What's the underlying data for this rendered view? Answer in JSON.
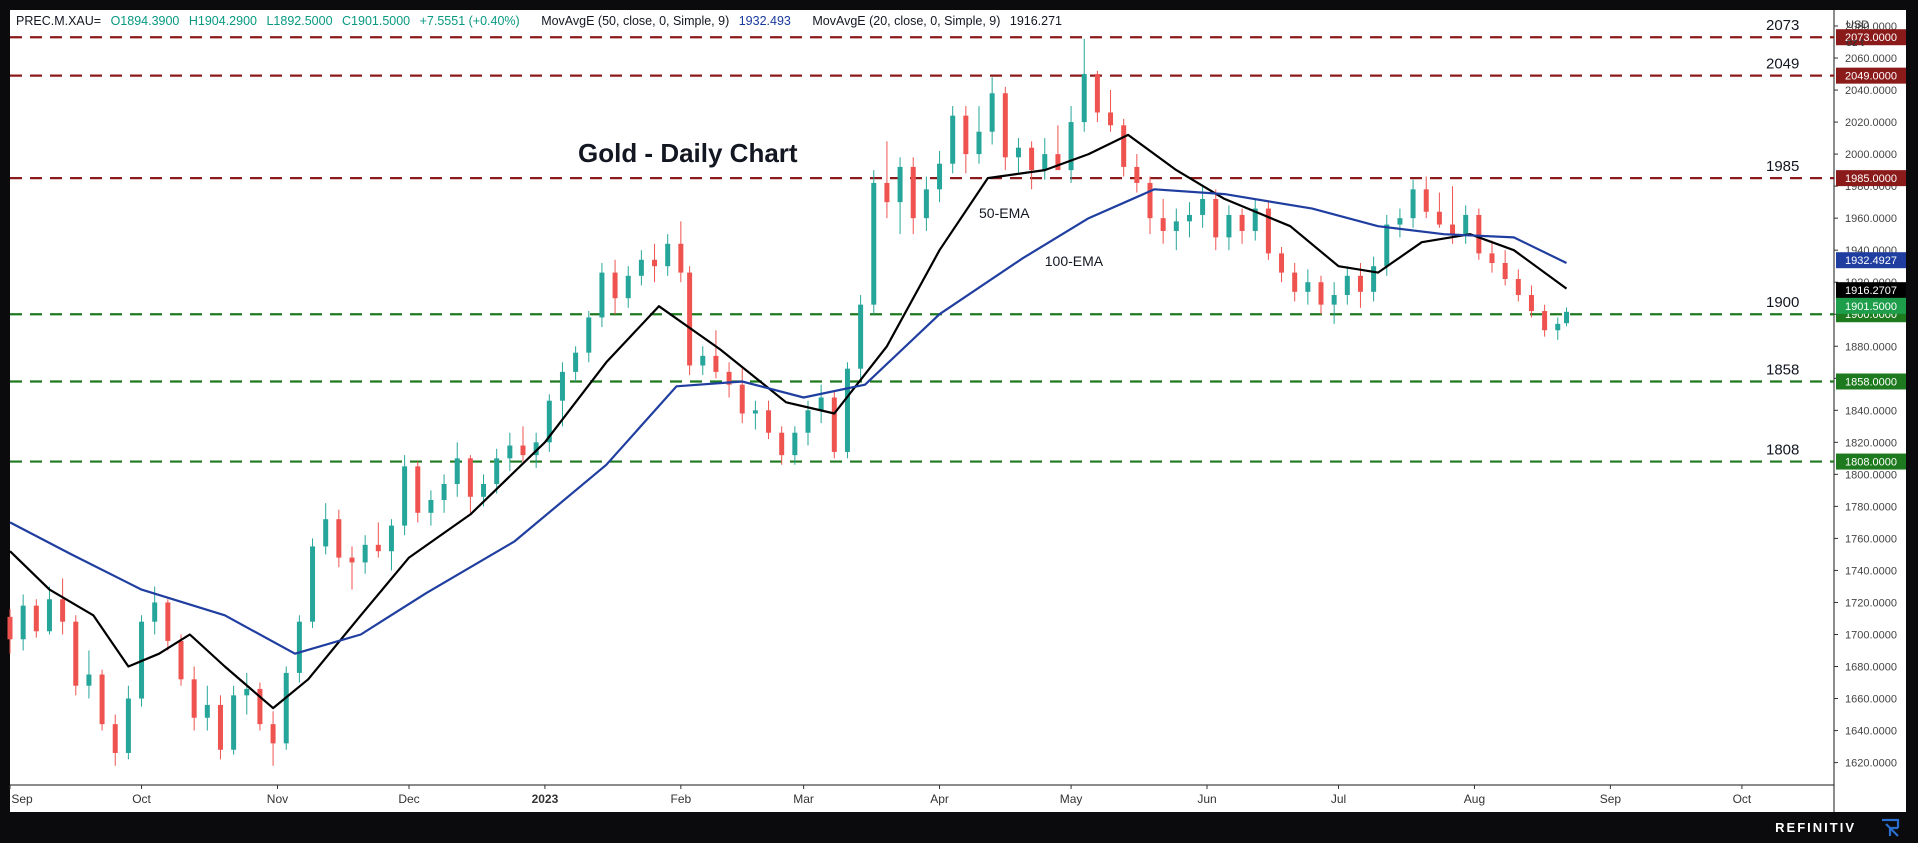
{
  "legend": {
    "symbol": "PREC.M.XAU=",
    "open": "O1894.3900",
    "high": "H1904.2900",
    "low": "L1892.5000",
    "close": "C1901.5000",
    "change": "+7.5551 (+0.40%)",
    "ma50_label": "MovAvgE (50, close, 0, Simple, 9)",
    "ma50_value": "1932.493",
    "ma20_label": "MovAvgE (20, close, 0, Simple, 9)",
    "ma20_value": "1916.271"
  },
  "brand": "REFINITIV",
  "colors": {
    "up": "#26a69a",
    "down": "#ef5350",
    "ema_short": "#000000",
    "ema_long": "#1f3ea0",
    "resistance": "#8b1a1a",
    "support": "#1e7a1e",
    "price_tag": "#1e7a3a"
  },
  "chart_data": {
    "type": "candlestick",
    "title": "Gold - Daily Chart",
    "y_axis": {
      "unit_line1": "USD",
      "unit_line2": "oz t",
      "range": [
        1606,
        2090
      ],
      "ticks": [
        1620,
        1640,
        1660,
        1680,
        1700,
        1720,
        1740,
        1760,
        1780,
        1800,
        1820,
        1840,
        1860,
        1880,
        1900,
        1920,
        1940,
        1960,
        1980,
        2000,
        2020,
        2040,
        2060,
        2080
      ],
      "tick_labels": [
        "1620.0000",
        "1640.0000",
        "1660.0000",
        "1680.0000",
        "1700.0000",
        "1720.0000",
        "1740.0000",
        "1760.0000",
        "1780.0000",
        "1800.0000",
        "1820.0000",
        "1840.0000",
        "1860.0000",
        "1880.0000",
        "1900.0000",
        "1920.0000",
        "1940.0000",
        "1960.0000",
        "1980.0000",
        "2000.0000",
        "2020.0000",
        "2040.0000",
        "2060.0000",
        "2080.0000"
      ]
    },
    "x_axis": {
      "labels": [
        "Sep",
        "Oct",
        "Nov",
        "Dec",
        "2023",
        "Feb",
        "Mar",
        "Apr",
        "May",
        "Jun",
        "Jul",
        "Aug",
        "Sep",
        "Oct"
      ],
      "label_dates": [
        "2022-09-01",
        "2022-10-01",
        "2022-11-01",
        "2022-12-01",
        "2023-01-01",
        "2023-02-01",
        "2023-03-01",
        "2023-04-01",
        "2023-05-01",
        "2023-06-01",
        "2023-07-01",
        "2023-08-01",
        "2023-09-01",
        "2023-10-01"
      ],
      "range": [
        "2022-09-01",
        "2023-10-22"
      ]
    },
    "horizontal_levels": [
      {
        "value": 2073,
        "label": "2073",
        "tag": "2073.0000",
        "kind": "resistance"
      },
      {
        "value": 2049,
        "label": "2049",
        "tag": "2049.0000",
        "kind": "resistance"
      },
      {
        "value": 1985,
        "label": "1985",
        "tag": "1985.0000",
        "kind": "resistance"
      },
      {
        "value": 1900,
        "label": "1900",
        "tag": "1900.0000",
        "kind": "support"
      },
      {
        "value": 1858,
        "label": "1858",
        "tag": "1858.0000",
        "kind": "support"
      },
      {
        "value": 1808,
        "label": "1808",
        "tag": "1808.0000",
        "kind": "support"
      }
    ],
    "price_tags": [
      {
        "value": 1932.4927,
        "text": "1932.4927",
        "color": "#1f3ea0"
      },
      {
        "value": 1916.2707,
        "text": "1916.2707",
        "color": "#000000"
      },
      {
        "value": 1901.5,
        "text": "1901.5000",
        "color": "#1e9e4a"
      }
    ],
    "annotations": [
      {
        "text": "50-EMA",
        "date": "2023-04-10",
        "value": 1960
      },
      {
        "text": "100-EMA",
        "date": "2023-04-25",
        "value": 1930
      }
    ],
    "series": [
      {
        "name": "MovAvgE (20, close, 0, Simple, 9)",
        "color": "#000000",
        "points": [
          [
            "2022-09-01",
            1752
          ],
          [
            "2022-09-10",
            1728
          ],
          [
            "2022-09-20",
            1712
          ],
          [
            "2022-09-28",
            1680
          ],
          [
            "2022-10-05",
            1688
          ],
          [
            "2022-10-12",
            1700
          ],
          [
            "2022-10-20",
            1680
          ],
          [
            "2022-10-31",
            1654
          ],
          [
            "2022-11-08",
            1672
          ],
          [
            "2022-11-20",
            1712
          ],
          [
            "2022-12-01",
            1748
          ],
          [
            "2022-12-15",
            1775
          ],
          [
            "2023-01-01",
            1820
          ],
          [
            "2023-01-15",
            1870
          ],
          [
            "2023-01-27",
            1905
          ],
          [
            "2023-02-10",
            1878
          ],
          [
            "2023-02-25",
            1845
          ],
          [
            "2023-03-08",
            1838
          ],
          [
            "2023-03-20",
            1880
          ],
          [
            "2023-04-01",
            1940
          ],
          [
            "2023-04-12",
            1985
          ],
          [
            "2023-04-25",
            1990
          ],
          [
            "2023-05-05",
            2000
          ],
          [
            "2023-05-14",
            2012
          ],
          [
            "2023-05-25",
            1990
          ],
          [
            "2023-06-05",
            1972
          ],
          [
            "2023-06-20",
            1955
          ],
          [
            "2023-07-01",
            1930
          ],
          [
            "2023-07-10",
            1926
          ],
          [
            "2023-07-20",
            1945
          ],
          [
            "2023-07-31",
            1950
          ],
          [
            "2023-08-10",
            1940
          ],
          [
            "2023-08-22",
            1916
          ]
        ]
      },
      {
        "name": "MovAvgE (50, close, 0, Simple, 9)",
        "color": "#1f3ea0",
        "points": [
          [
            "2022-09-01",
            1770
          ],
          [
            "2022-09-15",
            1750
          ],
          [
            "2022-10-01",
            1728
          ],
          [
            "2022-10-20",
            1712
          ],
          [
            "2022-11-05",
            1688
          ],
          [
            "2022-11-20",
            1700
          ],
          [
            "2022-12-05",
            1726
          ],
          [
            "2022-12-25",
            1758
          ],
          [
            "2023-01-15",
            1806
          ],
          [
            "2023-01-31",
            1855
          ],
          [
            "2023-02-15",
            1858
          ],
          [
            "2023-03-01",
            1848
          ],
          [
            "2023-03-15",
            1856
          ],
          [
            "2023-04-01",
            1900
          ],
          [
            "2023-04-20",
            1935
          ],
          [
            "2023-05-05",
            1960
          ],
          [
            "2023-05-20",
            1978
          ],
          [
            "2023-06-05",
            1975
          ],
          [
            "2023-06-25",
            1966
          ],
          [
            "2023-07-10",
            1955
          ],
          [
            "2023-07-25",
            1950
          ],
          [
            "2023-08-10",
            1948
          ],
          [
            "2023-08-22",
            1932
          ]
        ]
      }
    ],
    "candles_note": "daily OHLC, 2022-09-01 to 2023-08-22; last candle O1894.39 H1904.29 L1892.50 C1901.50",
    "candles": [
      [
        "2022-09-01",
        1711,
        1716,
        1688,
        1697
      ],
      [
        "2022-09-04",
        1697,
        1725,
        1690,
        1718
      ],
      [
        "2022-09-07",
        1718,
        1722,
        1698,
        1702
      ],
      [
        "2022-09-10",
        1702,
        1730,
        1700,
        1722
      ],
      [
        "2022-09-13",
        1722,
        1735,
        1700,
        1708
      ],
      [
        "2022-09-16",
        1708,
        1712,
        1662,
        1668
      ],
      [
        "2022-09-19",
        1668,
        1690,
        1660,
        1675
      ],
      [
        "2022-09-22",
        1675,
        1678,
        1640,
        1644
      ],
      [
        "2022-09-25",
        1644,
        1650,
        1618,
        1626
      ],
      [
        "2022-09-28",
        1626,
        1668,
        1622,
        1660
      ],
      [
        "2022-10-01",
        1660,
        1712,
        1655,
        1708
      ],
      [
        "2022-10-04",
        1708,
        1730,
        1700,
        1720
      ],
      [
        "2022-10-07",
        1720,
        1722,
        1690,
        1696
      ],
      [
        "2022-10-10",
        1696,
        1700,
        1668,
        1672
      ],
      [
        "2022-10-13",
        1672,
        1680,
        1640,
        1648
      ],
      [
        "2022-10-16",
        1648,
        1668,
        1640,
        1656
      ],
      [
        "2022-10-19",
        1656,
        1662,
        1622,
        1628
      ],
      [
        "2022-10-22",
        1628,
        1668,
        1625,
        1662
      ],
      [
        "2022-10-25",
        1662,
        1676,
        1650,
        1666
      ],
      [
        "2022-10-28",
        1666,
        1670,
        1640,
        1644
      ],
      [
        "2022-10-31",
        1644,
        1652,
        1618,
        1632
      ],
      [
        "2022-11-03",
        1632,
        1680,
        1628,
        1676
      ],
      [
        "2022-11-06",
        1676,
        1712,
        1670,
        1708
      ],
      [
        "2022-11-09",
        1708,
        1760,
        1704,
        1755
      ],
      [
        "2022-11-12",
        1755,
        1782,
        1750,
        1772
      ],
      [
        "2022-11-15",
        1772,
        1778,
        1742,
        1748
      ],
      [
        "2022-11-18",
        1748,
        1755,
        1728,
        1745
      ],
      [
        "2022-11-21",
        1745,
        1762,
        1738,
        1756
      ],
      [
        "2022-11-24",
        1756,
        1770,
        1748,
        1752
      ],
      [
        "2022-11-27",
        1752,
        1772,
        1740,
        1768
      ],
      [
        "2022-11-30",
        1768,
        1812,
        1762,
        1805
      ],
      [
        "2022-12-03",
        1805,
        1808,
        1770,
        1776
      ],
      [
        "2022-12-06",
        1776,
        1790,
        1768,
        1784
      ],
      [
        "2022-12-09",
        1784,
        1800,
        1776,
        1794
      ],
      [
        "2022-12-12",
        1794,
        1820,
        1786,
        1810
      ],
      [
        "2022-12-15",
        1810,
        1812,
        1776,
        1786
      ],
      [
        "2022-12-18",
        1786,
        1800,
        1780,
        1794
      ],
      [
        "2022-12-21",
        1794,
        1816,
        1788,
        1810
      ],
      [
        "2022-12-24",
        1810,
        1826,
        1802,
        1818
      ],
      [
        "2022-12-27",
        1818,
        1830,
        1808,
        1812
      ],
      [
        "2022-12-30",
        1812,
        1826,
        1804,
        1820
      ],
      [
        "2023-01-02",
        1820,
        1850,
        1814,
        1846
      ],
      [
        "2023-01-05",
        1846,
        1870,
        1830,
        1864
      ],
      [
        "2023-01-08",
        1864,
        1880,
        1858,
        1876
      ],
      [
        "2023-01-11",
        1876,
        1902,
        1870,
        1898
      ],
      [
        "2023-01-14",
        1898,
        1932,
        1892,
        1926
      ],
      [
        "2023-01-17",
        1926,
        1934,
        1900,
        1910
      ],
      [
        "2023-01-20",
        1910,
        1930,
        1904,
        1924
      ],
      [
        "2023-01-23",
        1924,
        1940,
        1918,
        1934
      ],
      [
        "2023-01-26",
        1934,
        1944,
        1920,
        1930
      ],
      [
        "2023-01-29",
        1930,
        1950,
        1924,
        1944
      ],
      [
        "2023-02-01",
        1944,
        1958,
        1920,
        1926
      ],
      [
        "2023-02-03",
        1926,
        1930,
        1862,
        1868
      ],
      [
        "2023-02-06",
        1868,
        1880,
        1862,
        1874
      ],
      [
        "2023-02-09",
        1874,
        1890,
        1860,
        1864
      ],
      [
        "2023-02-12",
        1864,
        1870,
        1848,
        1856
      ],
      [
        "2023-02-15",
        1856,
        1866,
        1832,
        1838
      ],
      [
        "2023-02-18",
        1838,
        1846,
        1828,
        1840
      ],
      [
        "2023-02-21",
        1840,
        1846,
        1822,
        1826
      ],
      [
        "2023-02-24",
        1826,
        1830,
        1806,
        1812
      ],
      [
        "2023-02-27",
        1812,
        1830,
        1806,
        1826
      ],
      [
        "2023-03-02",
        1826,
        1846,
        1818,
        1840
      ],
      [
        "2023-03-05",
        1840,
        1856,
        1832,
        1848
      ],
      [
        "2023-03-08",
        1848,
        1852,
        1810,
        1814
      ],
      [
        "2023-03-11",
        1814,
        1870,
        1810,
        1866
      ],
      [
        "2023-03-14",
        1866,
        1912,
        1860,
        1906
      ],
      [
        "2023-03-17",
        1906,
        1990,
        1900,
        1982
      ],
      [
        "2023-03-20",
        1982,
        2008,
        1960,
        1970
      ],
      [
        "2023-03-23",
        1970,
        1998,
        1950,
        1992
      ],
      [
        "2023-03-26",
        1992,
        1998,
        1950,
        1960
      ],
      [
        "2023-03-29",
        1960,
        1986,
        1952,
        1978
      ],
      [
        "2023-04-01",
        1978,
        2002,
        1970,
        1994
      ],
      [
        "2023-04-04",
        1994,
        2030,
        1988,
        2024
      ],
      [
        "2023-04-07",
        2024,
        2030,
        1988,
        2000
      ],
      [
        "2023-04-10",
        2000,
        2030,
        1994,
        2014
      ],
      [
        "2023-04-13",
        2014,
        2048,
        2006,
        2038
      ],
      [
        "2023-04-16",
        2038,
        2042,
        1990,
        1998
      ],
      [
        "2023-04-19",
        1998,
        2010,
        1988,
        2004
      ],
      [
        "2023-04-22",
        2004,
        2008,
        1978,
        1990
      ],
      [
        "2023-04-25",
        1990,
        2010,
        1984,
        2000
      ],
      [
        "2023-04-28",
        2000,
        2018,
        1994,
        1990
      ],
      [
        "2023-05-01",
        1990,
        2030,
        1982,
        2020
      ],
      [
        "2023-05-04",
        2020,
        2072,
        2014,
        2050
      ],
      [
        "2023-05-07",
        2050,
        2052,
        2020,
        2026
      ],
      [
        "2023-05-10",
        2026,
        2040,
        2014,
        2018
      ],
      [
        "2023-05-13",
        2018,
        2022,
        1986,
        1992
      ],
      [
        "2023-05-16",
        1992,
        2000,
        1976,
        1982
      ],
      [
        "2023-05-19",
        1982,
        1986,
        1950,
        1960
      ],
      [
        "2023-05-22",
        1960,
        1972,
        1944,
        1952
      ],
      [
        "2023-05-25",
        1952,
        1966,
        1940,
        1958
      ],
      [
        "2023-05-28",
        1958,
        1970,
        1948,
        1962
      ],
      [
        "2023-05-31",
        1962,
        1980,
        1954,
        1972
      ],
      [
        "2023-06-03",
        1972,
        1978,
        1940,
        1948
      ],
      [
        "2023-06-06",
        1948,
        1968,
        1940,
        1962
      ],
      [
        "2023-06-09",
        1962,
        1966,
        1944,
        1952
      ],
      [
        "2023-06-12",
        1952,
        1972,
        1946,
        1966
      ],
      [
        "2023-06-15",
        1966,
        1970,
        1934,
        1938
      ],
      [
        "2023-06-18",
        1938,
        1942,
        1920,
        1926
      ],
      [
        "2023-06-21",
        1926,
        1932,
        1908,
        1914
      ],
      [
        "2023-06-24",
        1914,
        1928,
        1906,
        1920
      ],
      [
        "2023-06-27",
        1920,
        1924,
        1900,
        1906
      ],
      [
        "2023-06-30",
        1906,
        1920,
        1894,
        1912
      ],
      [
        "2023-07-03",
        1912,
        1930,
        1906,
        1924
      ],
      [
        "2023-07-06",
        1924,
        1932,
        1904,
        1914
      ],
      [
        "2023-07-09",
        1914,
        1936,
        1908,
        1930
      ],
      [
        "2023-07-12",
        1930,
        1962,
        1924,
        1956
      ],
      [
        "2023-07-15",
        1956,
        1966,
        1948,
        1960
      ],
      [
        "2023-07-18",
        1960,
        1984,
        1954,
        1978
      ],
      [
        "2023-07-21",
        1978,
        1986,
        1960,
        1964
      ],
      [
        "2023-07-24",
        1964,
        1976,
        1954,
        1956
      ],
      [
        "2023-07-27",
        1956,
        1980,
        1944,
        1950
      ],
      [
        "2023-07-30",
        1950,
        1968,
        1944,
        1962
      ],
      [
        "2023-08-02",
        1962,
        1966,
        1934,
        1938
      ],
      [
        "2023-08-05",
        1938,
        1946,
        1926,
        1932
      ],
      [
        "2023-08-08",
        1932,
        1940,
        1918,
        1922
      ],
      [
        "2023-08-11",
        1922,
        1928,
        1908,
        1912
      ],
      [
        "2023-08-14",
        1912,
        1918,
        1898,
        1902
      ],
      [
        "2023-08-17",
        1902,
        1906,
        1886,
        1890
      ],
      [
        "2023-08-20",
        1890,
        1898,
        1884,
        1894
      ],
      [
        "2023-08-22",
        1894.39,
        1904.29,
        1892.5,
        1901.5
      ]
    ]
  }
}
